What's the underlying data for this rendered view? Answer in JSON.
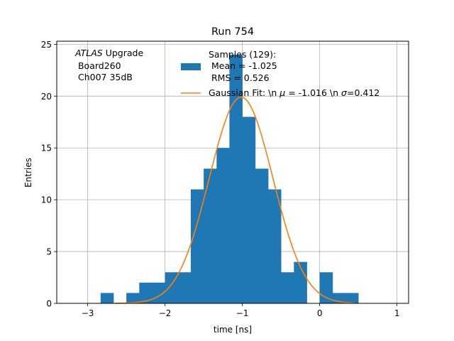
{
  "chart_data": {
    "type": "bar",
    "title": "Run 754",
    "xlabel": "time [ns]",
    "ylabel": "Entries",
    "xlim": [
      -3.4,
      1.15
    ],
    "ylim": [
      0,
      25.3
    ],
    "grid": true,
    "xticks": [
      -3,
      -2,
      -1,
      0,
      1
    ],
    "xtick_labels": [
      "−3",
      "−2",
      "−1",
      "0",
      "1"
    ],
    "yticks": [
      0,
      5,
      10,
      15,
      20,
      25
    ],
    "ytick_labels": [
      "0",
      "5",
      "10",
      "15",
      "20",
      "25"
    ],
    "bin_width": 0.1667,
    "histogram": {
      "bin_left_edges": [
        -2.833,
        -2.667,
        -2.5,
        -2.333,
        -2.167,
        -2.0,
        -1.833,
        -1.667,
        -1.5,
        -1.333,
        -1.167,
        -1.0,
        -0.833,
        -0.667,
        -0.5,
        -0.333,
        -0.167,
        0.0,
        0.167,
        0.333,
        0.5
      ],
      "counts": [
        1,
        0,
        1,
        2,
        2,
        3,
        3,
        11,
        13,
        15,
        24,
        18,
        13,
        11,
        3,
        4,
        0,
        3,
        1,
        1,
        0
      ],
      "color": "#1f77b4"
    },
    "gaussian_fit": {
      "mu": -1.016,
      "sigma": 0.412,
      "amplitude": 19.9,
      "x_range": [
        -2.65,
        0.45
      ],
      "color": "#ff7f0e"
    },
    "annotation_lines": [
      "ATLAS Upgrade",
      " Board260",
      " Ch007 35dB"
    ],
    "annotation_italic": "ATLAS",
    "annotation_rest": " Upgrade",
    "legend_placement": "top-right",
    "legend": [
      {
        "label_lines": [
          "Samples (129):",
          " Mean = -1.025",
          " RMS = 0.526"
        ],
        "style": "patch",
        "color": "#1f77b4"
      },
      {
        "label_pre": "Gaussian Fit: \\n ",
        "label_mu_sym": "μ",
        "label_mid": " = -1.016 \\n ",
        "label_sigma_sym": "σ",
        "label_post": "=0.412",
        "style": "line",
        "color": "#ff7f0e"
      }
    ]
  }
}
